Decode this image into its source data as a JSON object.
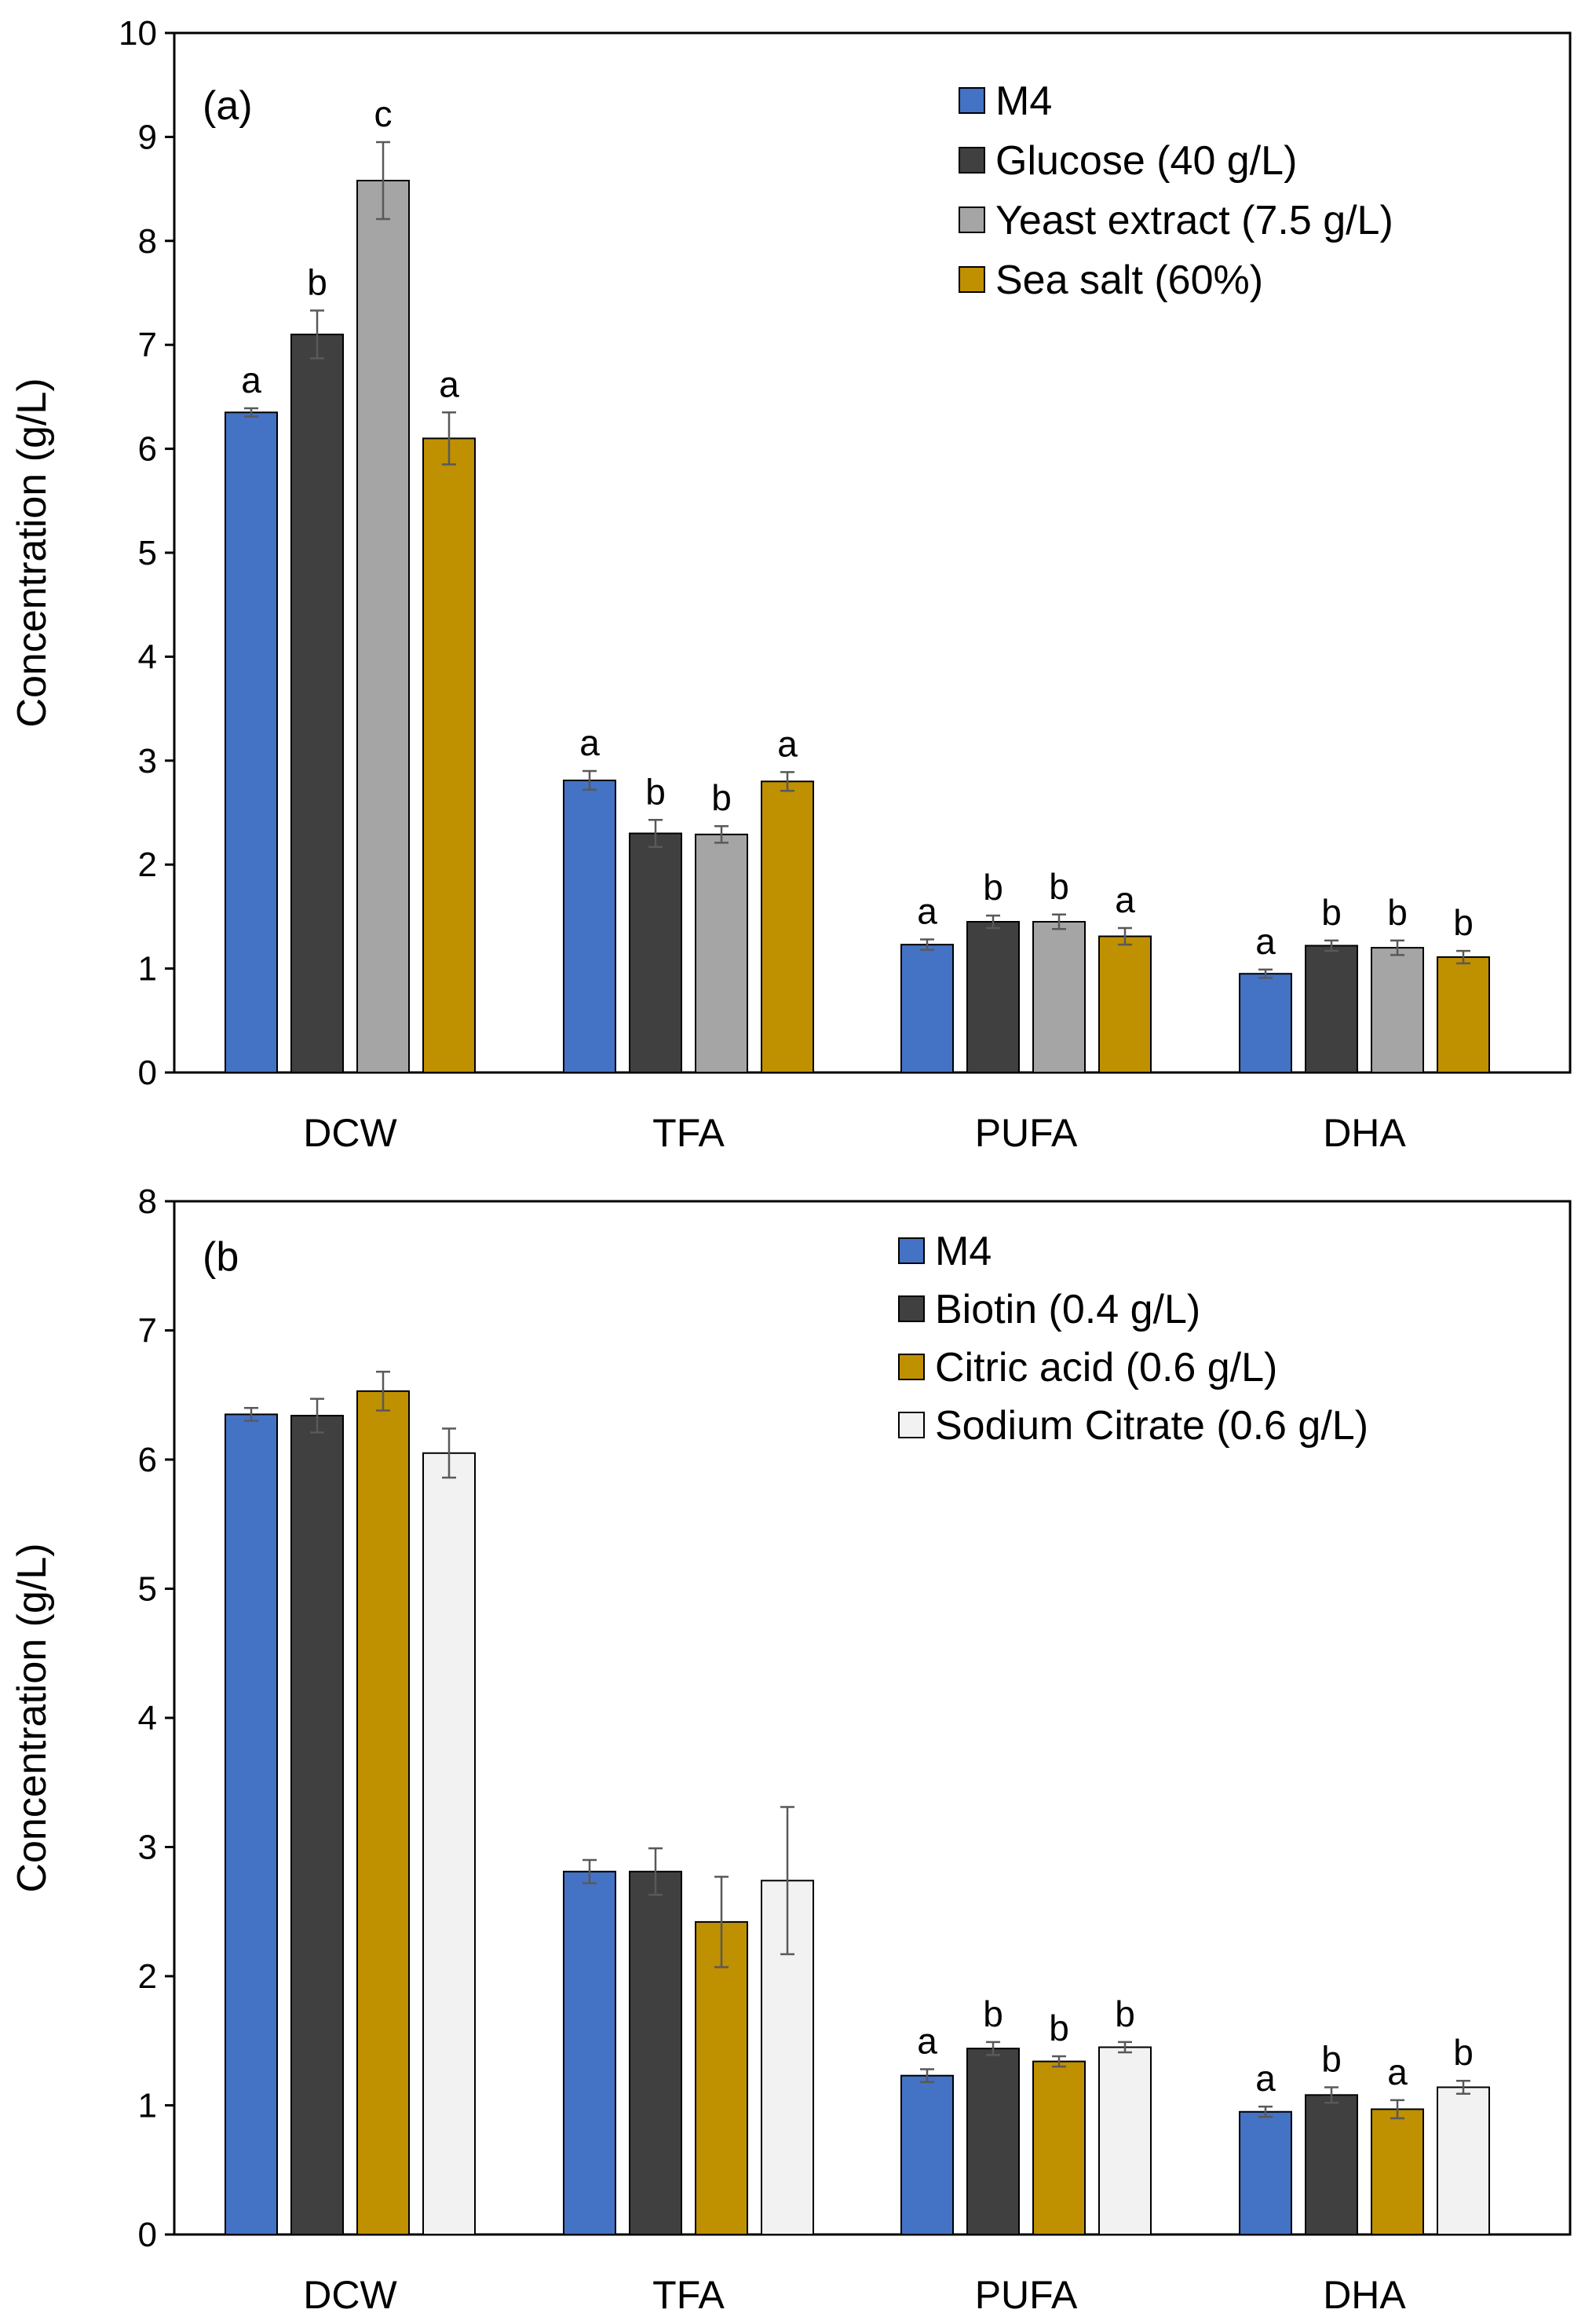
{
  "chart_data": [
    {
      "type": "bar",
      "panel_label": "(a)",
      "ylabel": "Concentration (g/L)",
      "xlabel": "",
      "ylim": [
        0,
        10
      ],
      "yticks": [
        0,
        1,
        2,
        3,
        4,
        5,
        6,
        7,
        8,
        9,
        10
      ],
      "ytick_labels": [
        "0",
        "1",
        "2",
        "3",
        "4",
        "5",
        "6",
        "7",
        "8",
        "9",
        "10"
      ],
      "categories": [
        "DCW",
        "TFA",
        "PUFA",
        "DHA"
      ],
      "legend_position": "top-right",
      "series": [
        {
          "name": "M4",
          "color": "#4472C4",
          "values": [
            6.35,
            2.81,
            1.23,
            0.95
          ],
          "errors": [
            0.04,
            0.09,
            0.05,
            0.04
          ],
          "letters": [
            "a",
            "a",
            "a",
            "a"
          ]
        },
        {
          "name": "Glucose (40 g/L)",
          "color": "#404040",
          "values": [
            7.1,
            2.3,
            1.45,
            1.22
          ],
          "errors": [
            0.23,
            0.13,
            0.06,
            0.05
          ],
          "letters": [
            "b",
            "b",
            "b",
            "b"
          ]
        },
        {
          "name": "Yeast extract (7.5 g/L)",
          "color": "#A5A5A5",
          "values": [
            8.58,
            2.29,
            1.45,
            1.2
          ],
          "errors": [
            0.37,
            0.08,
            0.07,
            0.07
          ],
          "letters": [
            "c",
            "b",
            "b",
            "b"
          ]
        },
        {
          "name": "Sea salt (60%)",
          "color": "#BF9000",
          "values": [
            6.1,
            2.8,
            1.31,
            1.11
          ],
          "errors": [
            0.25,
            0.09,
            0.08,
            0.06
          ],
          "letters": [
            "a",
            "a",
            "a",
            "b"
          ]
        }
      ]
    },
    {
      "type": "bar",
      "panel_label": "(b",
      "ylabel": "Concentration (g/L)",
      "xlabel": "",
      "ylim": [
        0,
        8
      ],
      "yticks": [
        0,
        1,
        2,
        3,
        4,
        5,
        6,
        7,
        8
      ],
      "ytick_labels": [
        "0",
        "1",
        "2",
        "3",
        "4",
        "5",
        "6",
        "7",
        "8"
      ],
      "categories": [
        "DCW",
        "TFA",
        "PUFA",
        "DHA"
      ],
      "legend_position": "top-right",
      "series": [
        {
          "name": "M4",
          "color": "#4472C4",
          "values": [
            6.35,
            2.81,
            1.23,
            0.95
          ],
          "errors": [
            0.05,
            0.09,
            0.05,
            0.04
          ],
          "letters": [
            "",
            "",
            "a",
            "a"
          ]
        },
        {
          "name": "Biotin (0.4 g/L)",
          "color": "#404040",
          "values": [
            6.34,
            2.81,
            1.44,
            1.08
          ],
          "errors": [
            0.13,
            0.18,
            0.05,
            0.06
          ],
          "letters": [
            "",
            "",
            "b",
            "b"
          ]
        },
        {
          "name": "Citric acid (0.6 g/L)",
          "color": "#BF9000",
          "values": [
            6.53,
            2.42,
            1.34,
            0.97
          ],
          "errors": [
            0.15,
            0.35,
            0.04,
            0.07
          ],
          "letters": [
            "",
            "",
            "b",
            "a"
          ]
        },
        {
          "name": "Sodium Citrate (0.6 g/L)",
          "color": "#F2F2F2",
          "values": [
            6.05,
            2.74,
            1.45,
            1.14
          ],
          "errors": [
            0.19,
            0.57,
            0.04,
            0.05
          ],
          "letters": [
            "",
            "",
            "b",
            "b"
          ]
        }
      ]
    }
  ]
}
